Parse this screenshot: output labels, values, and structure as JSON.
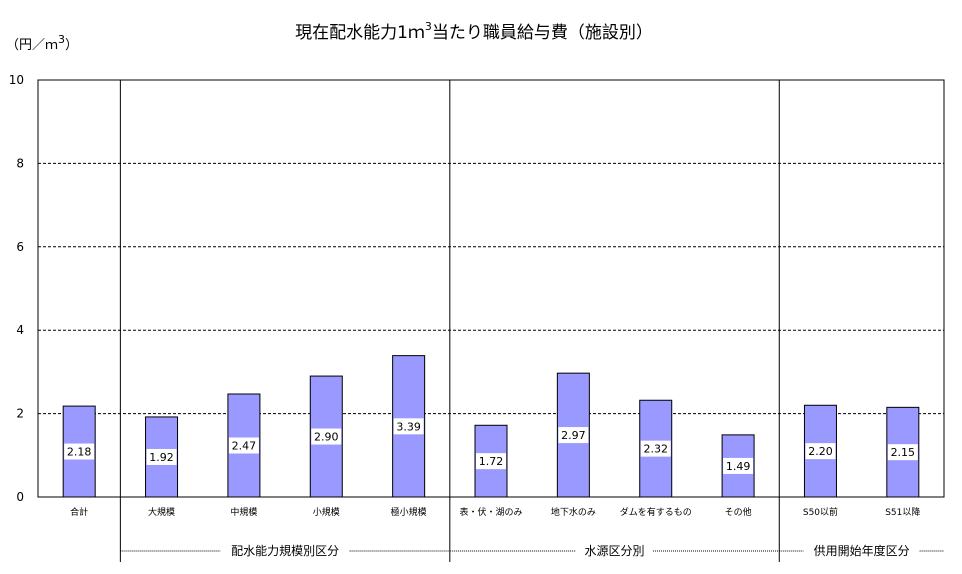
{
  "title_main": "現在配水能力1ｍ",
  "title_sup": "3",
  "title_tail": "当たり職員給与費（施設別）",
  "unit_main": "（円／ｍ",
  "unit_sup": "3",
  "unit_tail": "）",
  "colors": {
    "bar": "#9999ff",
    "grid": "#000000",
    "label_bg": "#ffffff"
  },
  "chart_data": {
    "type": "bar",
    "ylim": [
      0,
      10
    ],
    "yticks": [
      0,
      2,
      4,
      6,
      8,
      10
    ],
    "grid": "dashed horizontal",
    "categories": [
      "合計",
      "大規模",
      "中規模",
      "小規模",
      "極小規模",
      "表・伏・湖のみ",
      "地下水のみ",
      "ダムを有するもの",
      "その他",
      "S50以前",
      "S51以降"
    ],
    "values": [
      2.18,
      1.92,
      2.47,
      2.9,
      3.39,
      1.72,
      2.97,
      2.32,
      1.49,
      2.2,
      2.15
    ],
    "value_labels": [
      "2.18",
      "1.92",
      "2.47",
      "2.90",
      "3.39",
      "1.72",
      "2.97",
      "2.32",
      "1.49",
      "2.20",
      "2.15"
    ],
    "groups": [
      {
        "label": "配水能力規模別区分",
        "start": 1,
        "end": 4
      },
      {
        "label": "水源区分別",
        "start": 5,
        "end": 8
      },
      {
        "label": "供用開始年度区分",
        "start": 9,
        "end": 10
      }
    ]
  }
}
